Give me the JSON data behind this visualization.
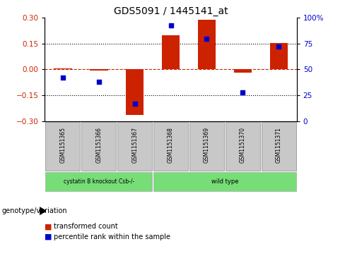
{
  "title": "GDS5091 / 1445141_at",
  "categories": [
    "GSM1151365",
    "GSM1151366",
    "GSM1151367",
    "GSM1151368",
    "GSM1151369",
    "GSM1151370",
    "GSM1151371"
  ],
  "bar_values": [
    0.005,
    -0.005,
    -0.265,
    0.2,
    0.29,
    -0.02,
    0.155
  ],
  "percentile_values": [
    42,
    38,
    17,
    93,
    80,
    28,
    72
  ],
  "ylim": [
    -0.3,
    0.3
  ],
  "yticks_left": [
    -0.3,
    -0.15,
    0.0,
    0.15,
    0.3
  ],
  "yticks_right": [
    0,
    25,
    50,
    75,
    100
  ],
  "bar_color": "#cc2200",
  "dot_color": "#0000cc",
  "hline_color": "#cc2200",
  "grid_color": "#000000",
  "groups": [
    {
      "label": "cystatin B knockout Csb-/-",
      "start": 0,
      "end": 2,
      "color": "#77dd77"
    },
    {
      "label": "wild type",
      "start": 3,
      "end": 6,
      "color": "#77dd77"
    }
  ],
  "group_label_prefix": "genotype/variation",
  "legend_items": [
    {
      "color": "#cc2200",
      "label": "transformed count"
    },
    {
      "color": "#0000cc",
      "label": "percentile rank within the sample"
    }
  ],
  "bar_width": 0.5
}
